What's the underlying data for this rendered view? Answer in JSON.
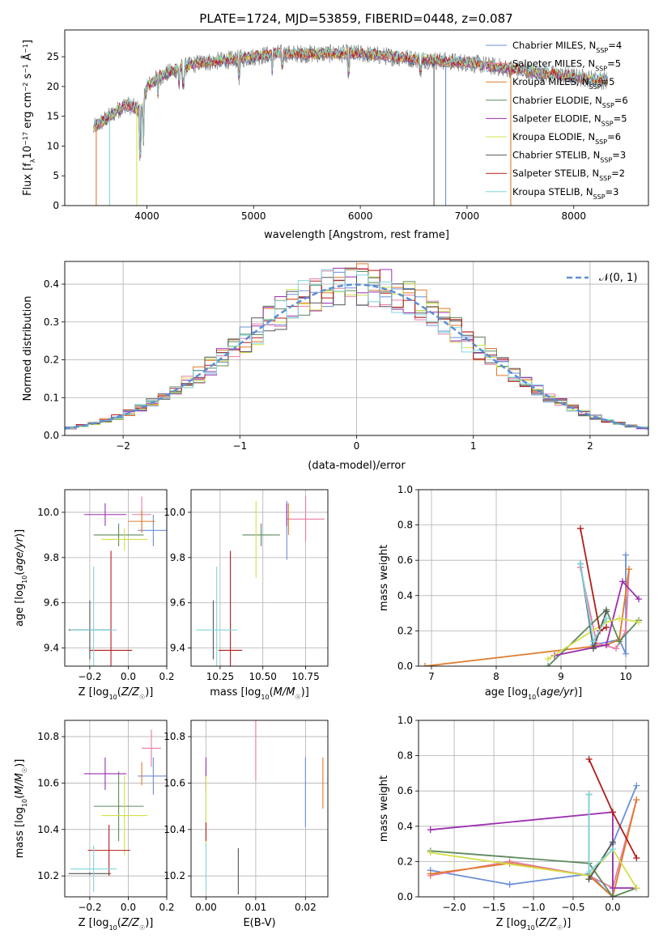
{
  "figure_title": "PLATE=1724, MJD=53859, FIBERID=0448, z=0.087",
  "colors": {
    "Chabrier MILES": "#6b8fd6",
    "Salpeter MILES": "#e87ba6",
    "Kroupa MILES": "#e07b2a",
    "Chabrier ELODIE": "#5e8a5e",
    "Salpeter ELODIE": "#9b2fae",
    "Kroupa ELODIE": "#d4e04a",
    "Chabrier STELIB": "#555555",
    "Salpeter STELIB": "#b31b1b",
    "Kroupa STELIB": "#7fd6dc",
    "normal": "#5b8fd6",
    "data": "#7f7f7f"
  },
  "chart_data": [
    {
      "id": "spectrum",
      "type": "line",
      "title": "PLATE=1724, MJD=53859, FIBERID=0448, z=0.087",
      "xlabel": "wavelength [Angstrom, rest frame]",
      "ylabel_parts": [
        "Flux [f",
        "λ",
        "10",
        "−17",
        " erg cm",
        "−2",
        " s",
        "−1",
        " Å",
        "−1",
        "]"
      ],
      "xlim": [
        3230,
        8700
      ],
      "ylim": [
        0,
        29.5
      ],
      "xticks": [
        4000,
        5000,
        6000,
        7000,
        8000
      ],
      "yticks": [
        0,
        5,
        10,
        15,
        20,
        25
      ],
      "grid": false,
      "legend": "upper right",
      "series": [
        {
          "name": "Chabrier MILES",
          "nssp": "4"
        },
        {
          "name": "Salpeter MILES",
          "nssp": "5"
        },
        {
          "name": "Kroupa MILES",
          "nssp": "5"
        },
        {
          "name": "Chabrier ELODIE",
          "nssp": "6"
        },
        {
          "name": "Salpeter ELODIE",
          "nssp": "5"
        },
        {
          "name": "Kroupa ELODIE",
          "nssp": "6"
        },
        {
          "name": "Chabrier STELIB",
          "nssp": "3"
        },
        {
          "name": "Salpeter STELIB",
          "nssp": "2"
        },
        {
          "name": "Kroupa STELIB",
          "nssp": "3"
        }
      ],
      "continuum": [
        [
          3500,
          13
        ],
        [
          3650,
          15
        ],
        [
          3800,
          17
        ],
        [
          3950,
          16
        ],
        [
          4000,
          20
        ],
        [
          4100,
          21.5
        ],
        [
          4300,
          23
        ],
        [
          4500,
          24
        ],
        [
          4800,
          24.5
        ],
        [
          5000,
          25
        ],
        [
          5200,
          25.5
        ],
        [
          5500,
          25.5
        ],
        [
          6000,
          25.5
        ],
        [
          6300,
          25
        ],
        [
          6600,
          24.5
        ],
        [
          7000,
          24
        ],
        [
          7400,
          23
        ],
        [
          7800,
          22
        ],
        [
          8300,
          21
        ]
      ],
      "xrange_data": [
        3500,
        8320
      ]
    },
    {
      "id": "residuals",
      "type": "histogram",
      "xlabel": "(data-model)/error",
      "ylabel": "Normed distribution",
      "xlim": [
        -2.5,
        2.5
      ],
      "ylim": [
        0,
        0.46
      ],
      "xticks": [
        -2,
        -1,
        0,
        1,
        2
      ],
      "yticks": [
        0.0,
        0.1,
        0.2,
        0.3,
        0.4
      ],
      "grid": true,
      "legend": "upper right",
      "legend_label": "𝒩(0, 1)",
      "bin_width": 0.1
    },
    {
      "id": "age_vs_Z",
      "type": "errorbar",
      "xlabel": "Z [log10(Z/Z☉)]",
      "ylabel": "age  [log10(age/yr)]",
      "xlim": [
        -0.33,
        0.2
      ],
      "ylim": [
        9.32,
        10.1
      ],
      "xticks": [
        -0.2,
        0.0,
        0.2
      ],
      "yticks": [
        9.4,
        9.6,
        9.8,
        10.0
      ],
      "points": [
        {
          "name": "Chabrier MILES",
          "x": 0.13,
          "xerr": 0.08,
          "y": 9.92,
          "yerr": 0.07
        },
        {
          "name": "Salpeter MILES",
          "x": 0.07,
          "xerr": 0.05,
          "y": 9.99,
          "yerr": 0.08
        },
        {
          "name": "Kroupa MILES",
          "x": 0.07,
          "xerr": 0.07,
          "y": 9.96,
          "yerr": 0.05
        },
        {
          "name": "Chabrier ELODIE",
          "x": -0.05,
          "xerr": 0.13,
          "y": 9.9,
          "yerr": 0.05
        },
        {
          "name": "Salpeter ELODIE",
          "x": -0.12,
          "xerr": 0.11,
          "y": 9.99,
          "yerr": 0.05
        },
        {
          "name": "Kroupa ELODIE",
          "x": -0.02,
          "xerr": 0.12,
          "y": 9.88,
          "yerr": 0.05
        },
        {
          "name": "Chabrier STELIB",
          "x": -0.2,
          "xerr": 0.11,
          "y": 9.48,
          "yerr": 0.13
        },
        {
          "name": "Salpeter STELIB",
          "x": -0.09,
          "xerr": 0.11,
          "y": 9.39,
          "yerr": 0.44
        },
        {
          "name": "Kroupa STELIB",
          "x": -0.18,
          "xerr": 0.12,
          "y": 9.48,
          "yerr": 0.28
        }
      ]
    },
    {
      "id": "age_vs_mass",
      "type": "errorbar",
      "xlabel": "mass [log10(M/M☉)]",
      "xlim": [
        10.08,
        10.88
      ],
      "ylim": [
        9.32,
        10.1
      ],
      "xticks": [
        10.25,
        10.5,
        10.75
      ],
      "yticks": [
        9.4,
        9.6,
        9.8,
        10.0
      ],
      "points": [
        {
          "name": "Chabrier MILES",
          "x": 10.64,
          "xerr": 0.005,
          "y": 9.92,
          "yerr": 0.13
        },
        {
          "name": "Salpeter MILES",
          "x": 10.75,
          "xerr": 0.11,
          "y": 9.97,
          "yerr": 0.1
        },
        {
          "name": "Kroupa MILES",
          "x": 10.65,
          "xerr": 0.005,
          "y": 9.97,
          "yerr": 0.07
        },
        {
          "name": "Chabrier ELODIE",
          "x": 10.49,
          "xerr": 0.11,
          "y": 9.9,
          "yerr": 0.05
        },
        {
          "name": "Salpeter ELODIE",
          "x": 10.64,
          "xerr": 0.005,
          "y": 9.99,
          "yerr": 0.05
        },
        {
          "name": "Kroupa ELODIE",
          "x": 10.46,
          "xerr": 0.005,
          "y": 9.88,
          "yerr": 0.17
        },
        {
          "name": "Chabrier STELIB",
          "x": 10.21,
          "xerr": 0.005,
          "y": 9.48,
          "yerr": 0.13
        },
        {
          "name": "Salpeter STELIB",
          "x": 10.31,
          "xerr": 0.07,
          "y": 9.39,
          "yerr": 0.44
        },
        {
          "name": "Kroupa STELIB",
          "x": 10.23,
          "xerr": 0.12,
          "y": 9.48,
          "yerr": 0.28
        }
      ]
    },
    {
      "id": "mass_weight_vs_age",
      "type": "line",
      "xlabel": "age  [log10(age/yr)]",
      "ylabel": "mass weight",
      "xlim": [
        6.8,
        10.35
      ],
      "ylim": [
        0,
        1.0
      ],
      "xticks": [
        7,
        8,
        9,
        10
      ],
      "yticks": [
        0.0,
        0.2,
        0.4,
        0.6,
        0.8,
        1.0
      ],
      "series": [
        {
          "name": "Chabrier MILES",
          "points": [
            [
              9.3,
              0.58
            ],
            [
              9.5,
              0.12
            ],
            [
              9.9,
              0.15
            ],
            [
              10.0,
              0.07
            ],
            [
              10.0,
              0.63
            ]
          ]
        },
        {
          "name": "Salpeter MILES",
          "points": [
            [
              9.3,
              0.56
            ],
            [
              9.55,
              0.13
            ],
            [
              9.85,
              0.1
            ],
            [
              10.0,
              0.2
            ],
            [
              10.05,
              0.55
            ]
          ]
        },
        {
          "name": "Kroupa MILES",
          "points": [
            [
              6.9,
              0.0
            ],
            [
              9.7,
              0.12
            ],
            [
              9.9,
              0.15
            ],
            [
              10.05,
              0.55
            ]
          ]
        },
        {
          "name": "Chabrier ELODIE",
          "points": [
            [
              8.8,
              0.0
            ],
            [
              9.7,
              0.32
            ],
            [
              9.9,
              0.14
            ],
            [
              10.2,
              0.26
            ]
          ]
        },
        {
          "name": "Salpeter ELODIE",
          "points": [
            [
              8.9,
              0.06
            ],
            [
              9.7,
              0.12
            ],
            [
              9.95,
              0.48
            ],
            [
              10.2,
              0.38
            ]
          ]
        },
        {
          "name": "Kroupa ELODIE",
          "points": [
            [
              8.8,
              0.04
            ],
            [
              9.7,
              0.25
            ],
            [
              9.9,
              0.27
            ],
            [
              10.2,
              0.25
            ]
          ]
        },
        {
          "name": "Chabrier STELIB",
          "points": [
            [
              9.3,
              0.58
            ],
            [
              9.5,
              0.1
            ],
            [
              9.7,
              0.31
            ]
          ]
        },
        {
          "name": "Salpeter STELIB",
          "points": [
            [
              9.3,
              0.78
            ],
            [
              9.6,
              0.2
            ],
            [
              9.7,
              0.22
            ]
          ]
        },
        {
          "name": "Kroupa STELIB",
          "points": [
            [
              9.3,
              0.58
            ],
            [
              9.5,
              0.14
            ],
            [
              9.7,
              0.27
            ]
          ]
        }
      ]
    },
    {
      "id": "mass_vs_Z",
      "type": "errorbar",
      "xlabel": "Z [log10(Z/Z☉)]",
      "ylabel": "mass [log10(M/M☉)]",
      "xlim": [
        -0.33,
        0.2
      ],
      "ylim": [
        10.11,
        10.87
      ],
      "xticks": [
        -0.2,
        0.0,
        0.2
      ],
      "yticks": [
        10.2,
        10.4,
        10.6,
        10.8
      ],
      "points": [
        {
          "name": "Chabrier MILES",
          "x": 0.13,
          "xerr": 0.08,
          "y": 10.63,
          "yerr": 0.08
        },
        {
          "name": "Salpeter MILES",
          "x": 0.12,
          "xerr": 0.05,
          "y": 10.75,
          "yerr": 0.08
        },
        {
          "name": "Kroupa MILES",
          "x": 0.07,
          "xerr": 0.005,
          "y": 10.64,
          "yerr": 0.05
        },
        {
          "name": "Chabrier ELODIE",
          "x": -0.05,
          "xerr": 0.13,
          "y": 10.5,
          "yerr": 0.15
        },
        {
          "name": "Salpeter ELODIE",
          "x": -0.12,
          "xerr": 0.11,
          "y": 10.64,
          "yerr": 0.07
        },
        {
          "name": "Kroupa ELODIE",
          "x": -0.02,
          "xerr": 0.12,
          "y": 10.46,
          "yerr": 0.17
        },
        {
          "name": "Chabrier STELIB",
          "x": -0.2,
          "xerr": 0.11,
          "y": 10.21,
          "yerr": 0.005
        },
        {
          "name": "Salpeter STELIB",
          "x": -0.1,
          "xerr": 0.11,
          "y": 10.31,
          "yerr": 0.11
        },
        {
          "name": "Kroupa STELIB",
          "x": -0.18,
          "xerr": 0.12,
          "y": 10.23,
          "yerr": 0.1
        }
      ]
    },
    {
      "id": "mass_vs_ebv",
      "type": "errorbar",
      "xlabel": "E(B-V)",
      "xlim": [
        -0.003,
        0.0245
      ],
      "ylim": [
        10.11,
        10.87
      ],
      "xticks": [
        0.0,
        0.01,
        0.02
      ],
      "yticks": [
        10.2,
        10.4,
        10.6,
        10.8
      ],
      "points": [
        {
          "name": "Chabrier MILES",
          "x": 0.02,
          "xerr": 0,
          "y": 10.56,
          "yerr": 0.15
        },
        {
          "name": "Salpeter MILES",
          "x": 0.01,
          "xerr": 0,
          "y": 10.75,
          "yerr": 0.14
        },
        {
          "name": "Kroupa MILES",
          "x": 0.0235,
          "xerr": 0,
          "y": 10.6,
          "yerr": 0.11
        },
        {
          "name": "Chabrier ELODIE",
          "x": 0.0,
          "xerr": 0,
          "y": 10.55,
          "yerr": 0.13
        },
        {
          "name": "Salpeter ELODIE",
          "x": 0.0,
          "xerr": 0,
          "y": 10.64,
          "yerr": 0.07
        },
        {
          "name": "Kroupa ELODIE",
          "x": 0.0,
          "xerr": 0,
          "y": 10.48,
          "yerr": 0.15
        },
        {
          "name": "Chabrier STELIB",
          "x": 0.0065,
          "xerr": 0,
          "y": 10.22,
          "yerr": 0.1
        },
        {
          "name": "Salpeter STELIB",
          "x": 0.0,
          "xerr": 0,
          "y": 10.39,
          "yerr": 0.04
        },
        {
          "name": "Kroupa STELIB",
          "x": 0.0,
          "xerr": 0,
          "y": 10.24,
          "yerr": 0.1
        }
      ]
    },
    {
      "id": "mass_weight_vs_Z",
      "type": "line",
      "xlabel": "Z [log10(Z/Z☉)]",
      "ylabel": "mass weight",
      "xlim": [
        -2.45,
        0.45
      ],
      "ylim": [
        0,
        1.0
      ],
      "xticks": [
        -2.0,
        -1.5,
        -1.0,
        -0.5,
        0.0
      ],
      "yticks": [
        0.0,
        0.2,
        0.4,
        0.6,
        0.8,
        1.0
      ],
      "series": [
        {
          "name": "Chabrier MILES",
          "points": [
            [
              -2.3,
              0.15
            ],
            [
              -1.3,
              0.07
            ],
            [
              -0.3,
              0.13
            ],
            [
              0.0,
              0.0
            ],
            [
              0.0,
              0.3
            ],
            [
              0.3,
              0.63
            ]
          ]
        },
        {
          "name": "Salpeter MILES",
          "points": [
            [
              -2.3,
              0.12
            ],
            [
              -1.3,
              0.2
            ],
            [
              -0.3,
              0.12
            ],
            [
              0.0,
              0.05
            ],
            [
              0.3,
              0.55
            ]
          ]
        },
        {
          "name": "Kroupa MILES",
          "points": [
            [
              -2.3,
              0.13
            ],
            [
              -1.3,
              0.19
            ],
            [
              -0.3,
              0.12
            ],
            [
              0.0,
              0.0
            ],
            [
              0.3,
              0.55
            ]
          ]
        },
        {
          "name": "Chabrier ELODIE",
          "points": [
            [
              -2.3,
              0.26
            ],
            [
              -0.3,
              0.19
            ],
            [
              0.0,
              0.0
            ],
            [
              0.3,
              0.05
            ]
          ]
        },
        {
          "name": "Salpeter ELODIE",
          "points": [
            [
              -2.3,
              0.38
            ],
            [
              0.0,
              0.48
            ],
            [
              0.0,
              0.05
            ],
            [
              0.3,
              0.05
            ]
          ]
        },
        {
          "name": "Kroupa ELODIE",
          "points": [
            [
              -2.3,
              0.25
            ],
            [
              -0.3,
              0.12
            ],
            [
              0.0,
              0.27
            ],
            [
              0.3,
              0.05
            ]
          ]
        },
        {
          "name": "Chabrier STELIB",
          "points": [
            [
              -0.3,
              0.58
            ],
            [
              -0.3,
              0.1
            ],
            [
              0.0,
              0.31
            ]
          ]
        },
        {
          "name": "Salpeter STELIB",
          "points": [
            [
              -0.3,
              0.78
            ],
            [
              0.0,
              0.48
            ],
            [
              0.3,
              0.22
            ]
          ]
        },
        {
          "name": "Kroupa STELIB",
          "points": [
            [
              -0.3,
              0.58
            ],
            [
              -0.3,
              0.14
            ],
            [
              0.0,
              0.27
            ]
          ]
        }
      ]
    }
  ]
}
